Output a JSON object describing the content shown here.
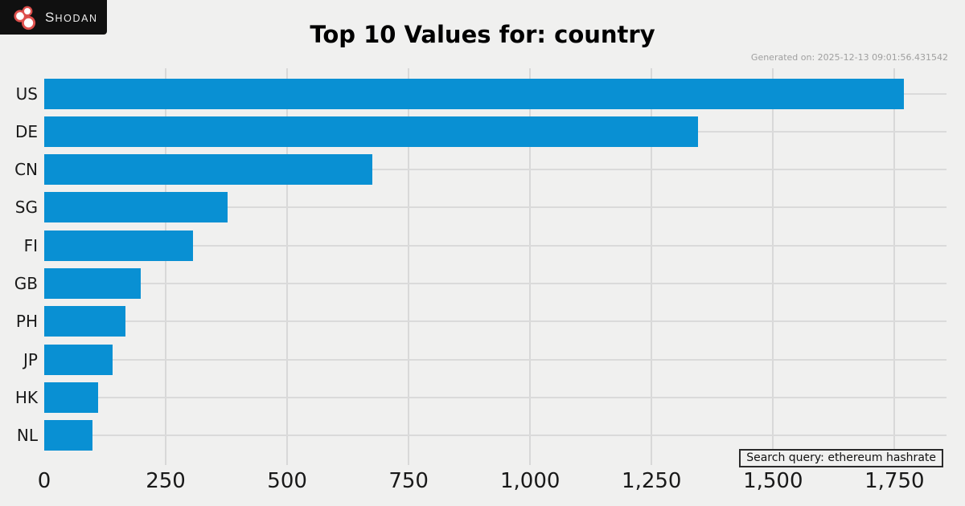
{
  "header": {
    "logo_text": "SHODAN",
    "logo_text_first": "S",
    "logo_text_rest": "HODAN",
    "title": "Top 10 Values for: country",
    "generated_on": "Generated on: 2025-12-13 09:01:56.431542"
  },
  "footer": {
    "search_query_label": "Search query: ethereum hashrate"
  },
  "colors": {
    "bar": "#0990d3",
    "background": "#f0f0ef",
    "gridline": "#d8d8d8",
    "logo_background": "#101010",
    "logo_red": "#dd4f4c"
  },
  "chart_data": {
    "type": "bar",
    "orientation": "horizontal",
    "title": "Top 10 Values for: country",
    "categories": [
      "US",
      "DE",
      "CN",
      "SG",
      "FI",
      "GB",
      "PH",
      "JP",
      "HK",
      "NL"
    ],
    "values": [
      1770,
      1345,
      675,
      377,
      306,
      199,
      167,
      140,
      111,
      99
    ],
    "xlabel": "",
    "ylabel": "",
    "xlim": [
      0,
      1857
    ],
    "xticks": [
      0,
      250,
      500,
      750,
      1000,
      1250,
      1500,
      1750
    ],
    "xtick_labels": [
      "0",
      "250",
      "500",
      "750",
      "1,000",
      "1,250",
      "1,500",
      "1,750"
    ],
    "grid": true,
    "legend": false
  }
}
